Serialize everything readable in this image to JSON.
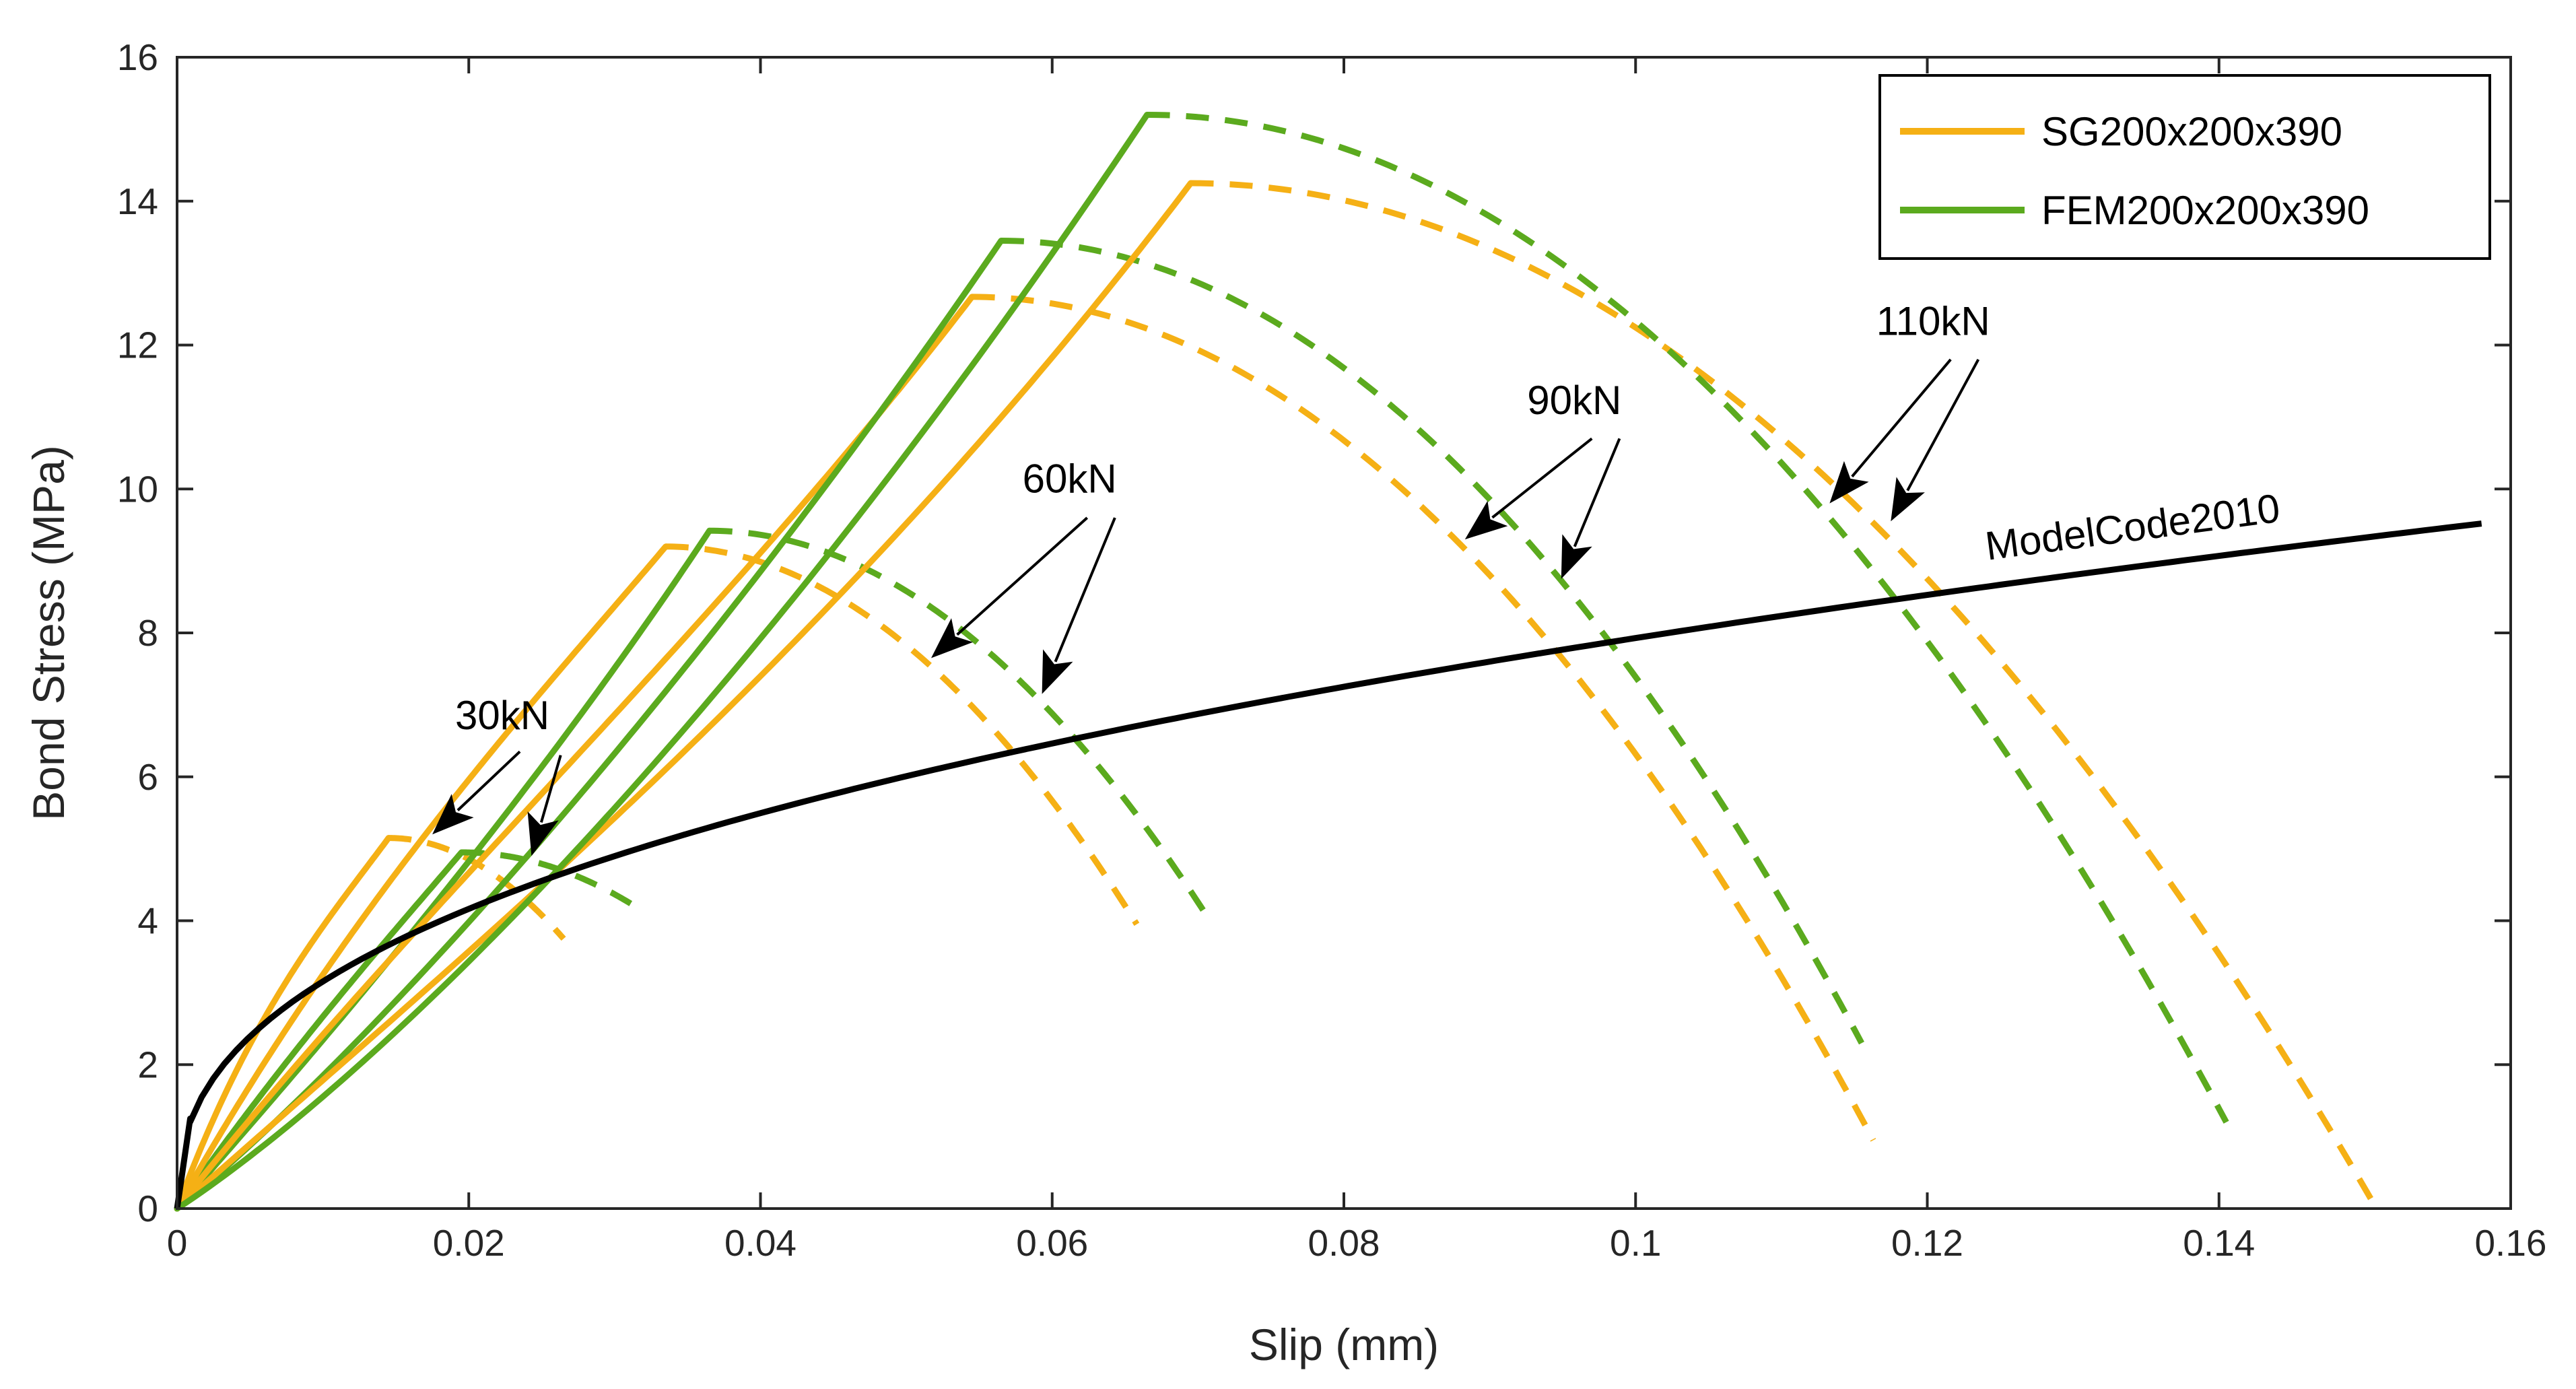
{
  "chart_data": {
    "type": "line",
    "xlabel": "Slip (mm)",
    "ylabel": "Bond Stress (MPa)",
    "xlim": [
      0,
      0.16
    ],
    "ylim": [
      0,
      16
    ],
    "xticks": [
      0,
      0.02,
      0.04,
      0.06,
      0.08,
      0.1,
      0.12,
      0.14,
      0.16
    ],
    "xtick_labels": [
      "0",
      "0.02",
      "0.04",
      "0.06",
      "0.08",
      "0.1",
      "0.12",
      "0.14",
      "0.16"
    ],
    "yticks": [
      0,
      2,
      4,
      6,
      8,
      10,
      12,
      14,
      16
    ],
    "ytick_labels": [
      "0",
      "2",
      "4",
      "6",
      "8",
      "10",
      "12",
      "14",
      "16"
    ],
    "grid": false,
    "legend_position": "top-right",
    "legend": [
      {
        "label": "SG200x200x390",
        "color": "#F5B015"
      },
      {
        "label": "FEM200x200x390",
        "color": "#5BAA1E"
      }
    ],
    "colors": {
      "sg": "#F5B015",
      "fem": "#5BAA1E",
      "model": "#000000",
      "arrow": "#000000"
    },
    "series": [
      {
        "name": "SG200x200x390 30kN",
        "group": "sg",
        "load": "30kN",
        "peak": [
          0.0145,
          5.15
        ],
        "end": [
          0.0265,
          3.75
        ],
        "asc_a": 0.004,
        "asc_b": 0.7,
        "asc_p": 2.6
      },
      {
        "name": "FEM200x200x390 30kN",
        "group": "fem",
        "load": "30kN",
        "peak": [
          0.0195,
          4.95
        ],
        "end": [
          0.0318,
          4.15
        ],
        "asc_a": 0.01,
        "asc_b": 0.5,
        "asc_p": 1.9
      },
      {
        "name": "SG200x200x390 60kN",
        "group": "sg",
        "load": "60kN",
        "peak": [
          0.0335,
          9.2
        ],
        "end": [
          0.0658,
          3.95
        ],
        "asc_a": 0.005,
        "asc_b": 0.6,
        "asc_p": 2.2
      },
      {
        "name": "FEM200x200x390 60kN",
        "group": "fem",
        "load": "60kN",
        "peak": [
          0.0365,
          9.42
        ],
        "end": [
          0.0705,
          4.1
        ],
        "asc_a": 0.012,
        "asc_b": 0.4,
        "asc_p": 2.0
      },
      {
        "name": "SG200x200x390 90kN",
        "group": "sg",
        "load": "90kN",
        "peak": [
          0.0545,
          12.67
        ],
        "end": [
          0.1163,
          0.95
        ],
        "asc_a": 0.008,
        "asc_b": 0.5,
        "asc_p": 2.3
      },
      {
        "name": "FEM200x200x390 90kN",
        "group": "fem",
        "load": "90kN",
        "peak": [
          0.0565,
          13.45
        ],
        "end": [
          0.1155,
          2.3
        ],
        "asc_a": 0.02,
        "asc_b": 0.3,
        "asc_p": 1.8
      },
      {
        "name": "SG200x200x390 110kN",
        "group": "sg",
        "load": "110kN",
        "peak": [
          0.0695,
          14.25
        ],
        "end": [
          0.1508,
          0.0
        ],
        "asc_a": 0.012,
        "asc_b": 0.4,
        "asc_p": 2.2
      },
      {
        "name": "FEM200x200x390 110kN",
        "group": "fem",
        "load": "110kN",
        "peak": [
          0.0665,
          15.2
        ],
        "end": [
          0.1405,
          1.2
        ],
        "asc_a": 0.025,
        "asc_b": 0.25,
        "asc_p": 1.8
      },
      {
        "name": "ModelCode2010",
        "group": "model",
        "kind": "power",
        "s1": 0.158,
        "tau_max": 9.52,
        "alpha": 0.4,
        "x0": 0.0009,
        "y0": 1.25
      }
    ],
    "annotations": [
      {
        "text": "30kN",
        "at": [
          0.0223,
          6.66
        ],
        "arrows": [
          {
            "from": [
              0.0235,
              6.35
            ],
            "to": [
              0.0175,
              5.2
            ]
          },
          {
            "from": [
              0.0263,
              6.3
            ],
            "to": [
              0.0243,
              4.9
            ]
          }
        ]
      },
      {
        "text": "60kN",
        "at": [
          0.0612,
          9.95
        ],
        "arrows": [
          {
            "from": [
              0.0624,
              9.6
            ],
            "to": [
              0.0517,
              7.65
            ]
          },
          {
            "from": [
              0.0643,
              9.6
            ],
            "to": [
              0.0593,
              7.15
            ]
          }
        ]
      },
      {
        "text": "90kN",
        "at": [
          0.0958,
          11.04
        ],
        "arrows": [
          {
            "from": [
              0.097,
              10.7
            ],
            "to": [
              0.0883,
              9.3
            ]
          },
          {
            "from": [
              0.0989,
              10.7
            ],
            "to": [
              0.0949,
              8.75
            ]
          }
        ]
      },
      {
        "text": "110kN",
        "at": [
          0.1204,
          12.14
        ],
        "arrows": [
          {
            "from": [
              0.1216,
              11.8
            ],
            "to": [
              0.1133,
              9.8
            ]
          },
          {
            "from": [
              0.1235,
              11.8
            ],
            "to": [
              0.1175,
              9.55
            ]
          }
        ]
      },
      {
        "text": "ModelCode2010",
        "at": [
          0.1342,
          9.28
        ],
        "rotate": -7.5
      }
    ]
  }
}
